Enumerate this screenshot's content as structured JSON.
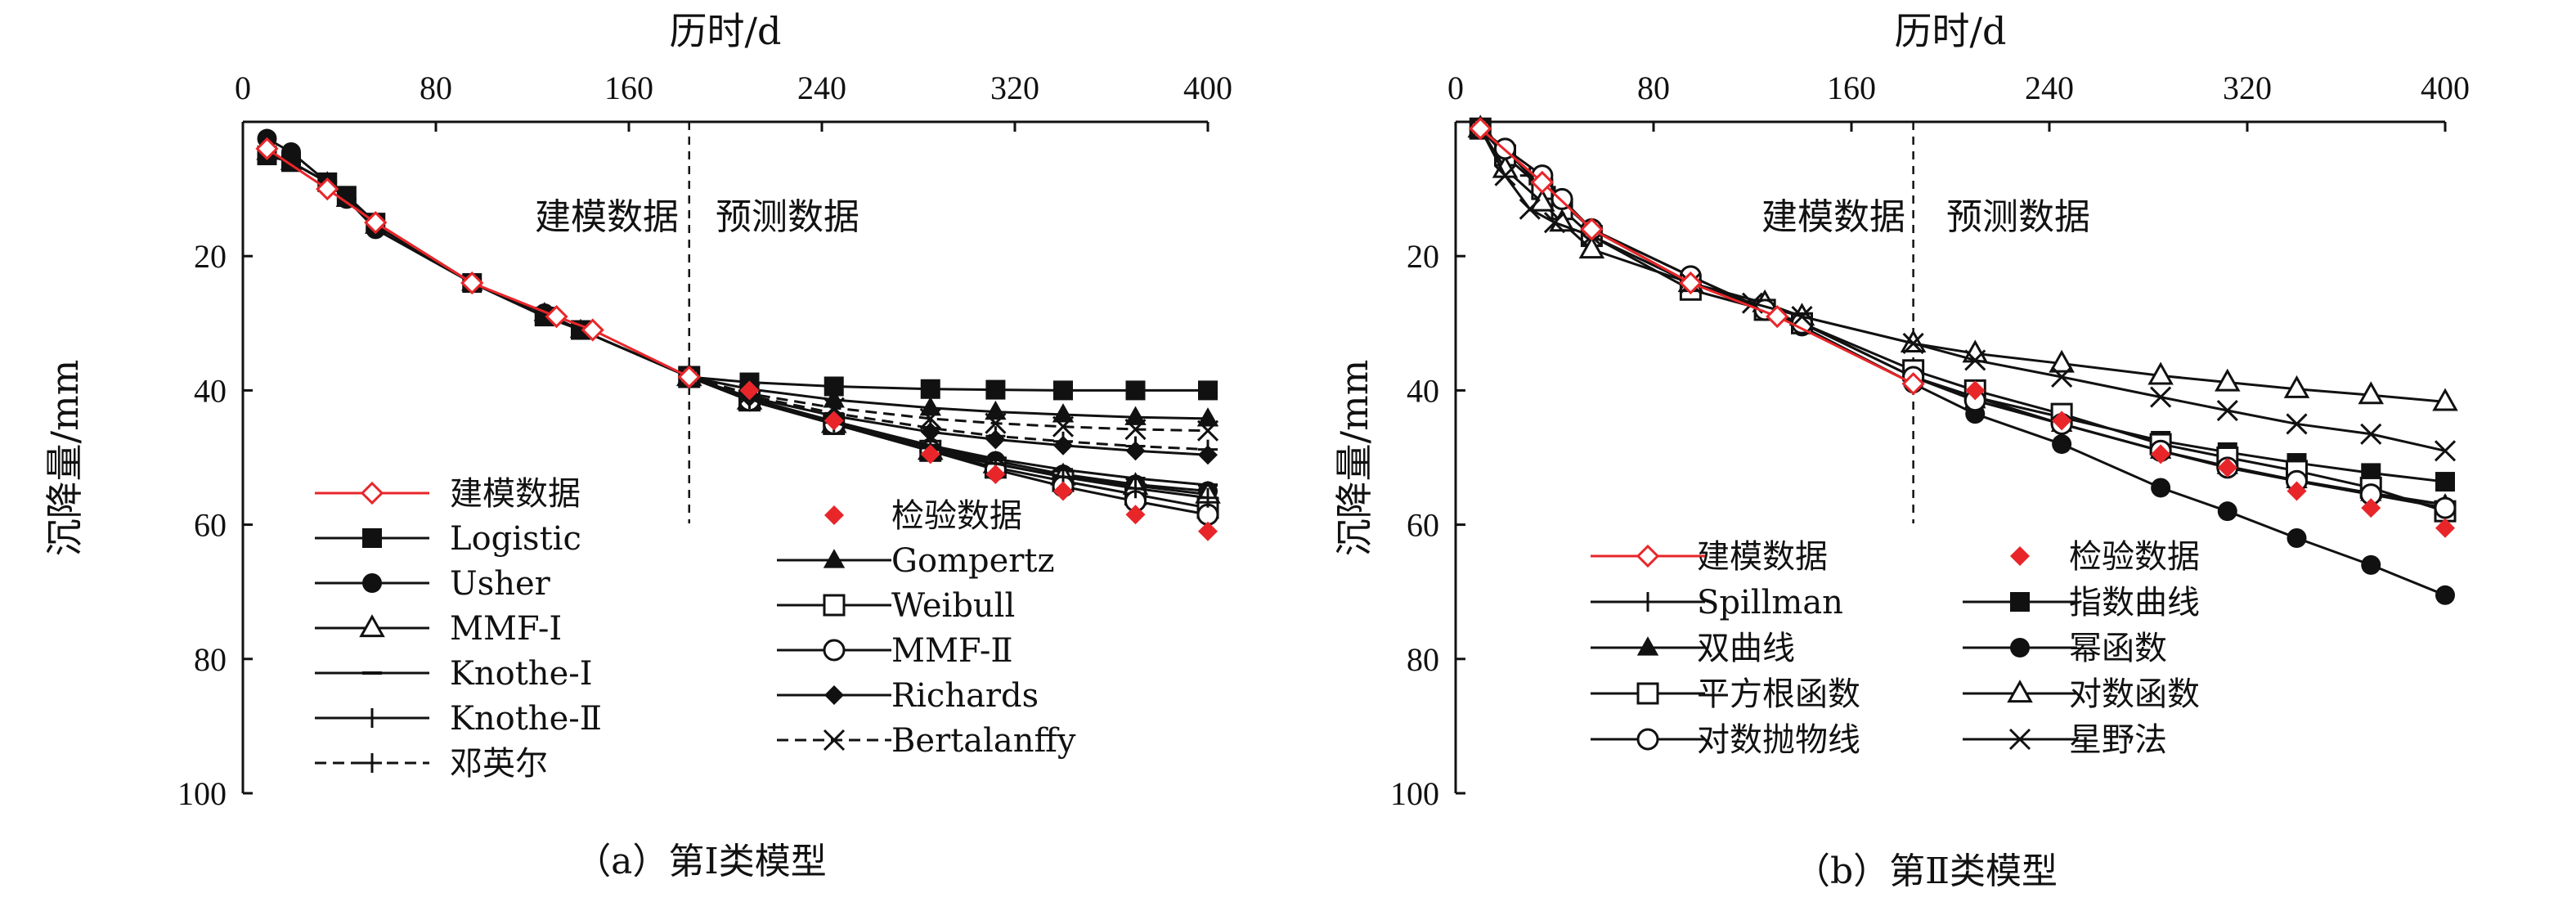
{
  "chart_data": [
    {
      "type": "line",
      "caption": "（a）第Ⅰ类模型",
      "xlabel": "历时/d",
      "ylabel": "沉降量/mm",
      "xlim": [
        0,
        400
      ],
      "ylim": [
        0,
        100
      ],
      "y_inverted": true,
      "x_axis_position": "top",
      "xticks": [
        0,
        80,
        160,
        240,
        320,
        400
      ],
      "yticks": [
        20,
        40,
        60,
        80,
        100
      ],
      "divider_x": 185,
      "annotations": [
        "建模数据",
        "预测数据"
      ],
      "legend_columns": 2,
      "series": [
        {
          "name": "建模数据",
          "color": "#e8262a",
          "marker": "diamond-open",
          "line": "solid",
          "x": [
            10,
            35,
            55,
            95,
            130,
            145,
            185
          ],
          "y": [
            4,
            10,
            15,
            24,
            29,
            31,
            38
          ]
        },
        {
          "name": "检验数据",
          "color": "#e8262a",
          "marker": "diamond-filled",
          "line": "none",
          "x": [
            210,
            245,
            285,
            312,
            340,
            370,
            400
          ],
          "y": [
            40,
            44.5,
            49.5,
            52.5,
            55,
            58.5,
            61
          ]
        },
        {
          "name": "Logistic",
          "color": "#111111",
          "marker": "square-filled",
          "line": "solid",
          "x": [
            10,
            20,
            35,
            43,
            55,
            95,
            125,
            140,
            185,
            210,
            245,
            285,
            312,
            340,
            370,
            400
          ],
          "y": [
            5,
            6,
            9,
            11,
            15,
            24,
            29,
            31,
            38,
            38.8,
            39.4,
            39.8,
            39.9,
            40,
            40,
            40
          ]
        },
        {
          "name": "Gompertz",
          "color": "#111111",
          "marker": "triangle-filled",
          "line": "solid",
          "x": [
            10,
            20,
            35,
            43,
            55,
            95,
            125,
            140,
            185,
            210,
            245,
            285,
            312,
            340,
            370,
            400
          ],
          "y": [
            4.5,
            6,
            9,
            11.5,
            15.5,
            24,
            28.5,
            31,
            38,
            39.8,
            41.4,
            42.6,
            43.2,
            43.6,
            44,
            44.2
          ]
        },
        {
          "name": "Usher",
          "color": "#111111",
          "marker": "circle-filled",
          "line": "solid",
          "x": [
            10,
            20,
            35,
            43,
            55,
            95,
            125,
            140,
            185,
            210,
            245,
            285,
            312,
            340,
            370,
            400
          ],
          "y": [
            2.5,
            4.5,
            9,
            11.5,
            16,
            24,
            28.5,
            31,
            38,
            41.5,
            45,
            48.5,
            50.5,
            52.5,
            54,
            55
          ]
        },
        {
          "name": "Weibull",
          "color": "#111111",
          "marker": "square-open",
          "line": "solid",
          "x": [
            185,
            210,
            245,
            285,
            312,
            340,
            370,
            400
          ],
          "y": [
            38,
            41.5,
            45,
            49,
            51.5,
            53.5,
            55.5,
            57.5
          ]
        },
        {
          "name": "MMF-Ⅰ",
          "color": "#111111",
          "marker": "triangle-open",
          "line": "solid",
          "x": [
            185,
            210,
            245,
            285,
            312,
            340,
            370,
            400
          ],
          "y": [
            38,
            41.5,
            45,
            49,
            51,
            52.8,
            54.2,
            55.5
          ]
        },
        {
          "name": "MMF-Ⅱ",
          "color": "#111111",
          "marker": "circle-open",
          "line": "solid",
          "x": [
            185,
            210,
            245,
            285,
            312,
            340,
            370,
            400
          ],
          "y": [
            38,
            41.5,
            45,
            49,
            51.8,
            54.3,
            56.5,
            58.5
          ]
        },
        {
          "name": "Richards",
          "color": "#111111",
          "marker": "diamond-filled",
          "line": "solid",
          "x": [
            185,
            210,
            245,
            285,
            312,
            340,
            370,
            400
          ],
          "y": [
            38,
            41,
            43.8,
            46.2,
            47.3,
            48.2,
            49,
            49.6
          ]
        },
        {
          "name": "Knothe-Ⅰ",
          "color": "#111111",
          "marker": "dash",
          "line": "solid",
          "x": [
            185,
            210,
            245,
            285,
            312,
            340,
            370,
            400
          ],
          "y": [
            38,
            41.2,
            44.6,
            48.2,
            50.2,
            51.8,
            53.1,
            54.1
          ]
        },
        {
          "name": "Knothe-Ⅱ",
          "color": "#111111",
          "marker": "plus",
          "line": "solid",
          "x": [
            185,
            210,
            245,
            285,
            312,
            340,
            370,
            400
          ],
          "y": [
            38,
            41.3,
            44.8,
            48.6,
            50.9,
            52.9,
            54.6,
            56
          ]
        },
        {
          "name": "Bertalanffy",
          "color": "#111111",
          "marker": "x",
          "line": "dashed",
          "x": [
            185,
            210,
            245,
            285,
            312,
            340,
            370,
            400
          ],
          "y": [
            38,
            40.5,
            42.6,
            44.2,
            44.9,
            45.4,
            45.8,
            46
          ]
        },
        {
          "name": "邓英尔",
          "color": "#111111",
          "marker": "plus",
          "line": "dashed",
          "x": [
            185,
            210,
            245,
            285,
            312,
            340,
            370,
            400
          ],
          "y": [
            38,
            40.8,
            43.4,
            45.6,
            46.8,
            47.6,
            48.3,
            48.8
          ]
        }
      ]
    },
    {
      "type": "line",
      "caption": "（b）第Ⅱ类模型",
      "xlabel": "历时/d",
      "ylabel": "沉降量/mm",
      "xlim": [
        0,
        400
      ],
      "ylim": [
        0,
        100
      ],
      "y_inverted": true,
      "x_axis_position": "top",
      "xticks": [
        0,
        80,
        160,
        240,
        320,
        400
      ],
      "yticks": [
        20,
        40,
        60,
        80,
        100
      ],
      "divider_x": 185,
      "annotations": [
        "建模数据",
        "预测数据"
      ],
      "legend_columns": 2,
      "series": [
        {
          "name": "建模数据",
          "color": "#e8262a",
          "marker": "diamond-open",
          "line": "solid",
          "x": [
            10,
            35,
            55,
            95,
            130,
            185
          ],
          "y": [
            1,
            9,
            16,
            24,
            29,
            39
          ]
        },
        {
          "name": "检验数据",
          "color": "#e8262a",
          "marker": "diamond-filled",
          "line": "none",
          "x": [
            210,
            245,
            285,
            312,
            340,
            370,
            400
          ],
          "y": [
            40,
            44.5,
            49.5,
            51.5,
            55,
            57.5,
            60.5
          ]
        },
        {
          "name": "Spillman",
          "color": "#111111",
          "marker": "plus",
          "line": "solid",
          "x": [
            10,
            20,
            30,
            40,
            55,
            95,
            125,
            140,
            185,
            210,
            245,
            285,
            312,
            340,
            370,
            400
          ],
          "y": [
            1,
            4,
            8,
            11,
            16,
            24,
            28,
            30,
            38,
            41,
            45,
            49,
            51.5,
            53.5,
            55.5,
            57
          ]
        },
        {
          "name": "指数曲线",
          "color": "#111111",
          "marker": "square-filled",
          "line": "solid",
          "x": [
            185,
            210,
            245,
            285,
            312,
            340,
            370,
            400
          ],
          "y": [
            38,
            41,
            44,
            47.5,
            49.2,
            50.8,
            52.3,
            53.6
          ]
        },
        {
          "name": "双曲线",
          "color": "#111111",
          "marker": "triangle-filled",
          "line": "solid",
          "x": [
            185,
            210,
            245,
            285,
            312,
            340,
            370,
            400
          ],
          "y": [
            38,
            41.5,
            45,
            49,
            51.3,
            53.4,
            55.3,
            57
          ]
        },
        {
          "name": "幂函数",
          "color": "#111111",
          "marker": "circle-filled",
          "line": "solid",
          "x": [
            10,
            20,
            35,
            43,
            55,
            95,
            125,
            140,
            185,
            210,
            245,
            285,
            312,
            340,
            370,
            400
          ],
          "y": [
            1,
            4.5,
            9,
            12,
            16,
            23,
            28,
            30.5,
            39,
            43.5,
            48,
            54.5,
            58,
            62,
            66,
            70.5
          ]
        },
        {
          "name": "平方根函数",
          "color": "#111111",
          "marker": "square-open",
          "line": "solid",
          "x": [
            10,
            20,
            35,
            43,
            55,
            95,
            125,
            140,
            185,
            210,
            245,
            285,
            312,
            340,
            370,
            400
          ],
          "y": [
            1,
            5,
            10,
            13,
            17,
            25,
            28,
            30,
            37,
            40,
            43.5,
            48,
            50,
            52,
            54.5,
            58
          ]
        },
        {
          "name": "对数函数",
          "color": "#111111",
          "marker": "triangle-open",
          "line": "solid",
          "x": [
            10,
            20,
            35,
            43,
            55,
            95,
            125,
            140,
            185,
            210,
            245,
            285,
            312,
            340,
            370,
            400
          ],
          "y": [
            1,
            7,
            12,
            15,
            19,
            24,
            27,
            29,
            33,
            34.5,
            36,
            37.8,
            38.8,
            39.8,
            40.7,
            41.7
          ]
        },
        {
          "name": "对数抛物线",
          "color": "#111111",
          "marker": "circle-open",
          "line": "solid",
          "x": [
            10,
            20,
            35,
            43,
            55,
            95,
            125,
            140,
            185,
            210,
            245,
            285,
            312,
            340,
            370,
            400
          ],
          "y": [
            1,
            4,
            8,
            11.5,
            16,
            23,
            28,
            30,
            38,
            41.5,
            45,
            49,
            51.5,
            53.5,
            55.5,
            57.5
          ]
        },
        {
          "name": "星野法",
          "color": "#111111",
          "marker": "x",
          "line": "solid",
          "x": [
            10,
            20,
            30,
            40,
            55,
            95,
            120,
            140,
            185,
            210,
            245,
            285,
            312,
            340,
            370,
            400
          ],
          "y": [
            1,
            8,
            13,
            15,
            17,
            24,
            27,
            29,
            33,
            35.5,
            38,
            41,
            43,
            45,
            46.5,
            49
          ]
        }
      ]
    }
  ]
}
